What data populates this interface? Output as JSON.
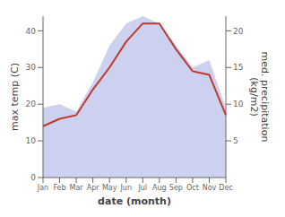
{
  "chart_data": {
    "type": "line",
    "categories": [
      "Jan",
      "Feb",
      "Mar",
      "Apr",
      "May",
      "Jun",
      "Jul",
      "Aug",
      "Sep",
      "Oct",
      "Nov",
      "Dec"
    ],
    "xlabel": "date (month)",
    "ylabel": "max temp (C)",
    "y2label": "med. precipitation\n(kg/m2)",
    "ylim": [
      0,
      44
    ],
    "yticks": [
      0,
      10,
      20,
      30,
      40
    ],
    "y2lim": [
      0,
      22
    ],
    "y2ticks": [
      5,
      10,
      15,
      20
    ],
    "grid": false,
    "series": [
      {
        "type": "line",
        "color": "#c0392b",
        "values": [
          14,
          16,
          17,
          24,
          30,
          37,
          42,
          42,
          35,
          29,
          28,
          17
        ]
      },
      {
        "type": "area",
        "axis": "y2",
        "color": "#b0b8e8",
        "values": [
          9.5,
          10,
          9,
          13,
          18,
          21,
          22,
          21,
          18,
          15,
          16,
          9.5
        ]
      }
    ]
  }
}
